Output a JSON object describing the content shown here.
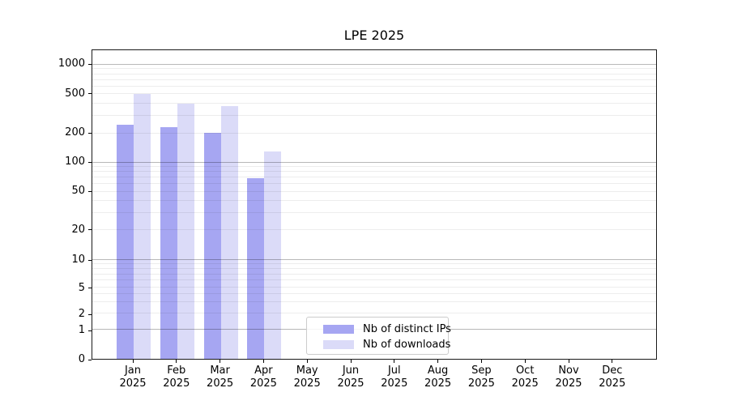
{
  "chart_data": {
    "type": "bar",
    "title": "LPE 2025",
    "scale": "symlog",
    "grid": "horizontal major and minor gridlines",
    "legend_position": "lower center inside plot",
    "categories": [
      "Jan",
      "Feb",
      "Mar",
      "Apr",
      "May",
      "Jun",
      "Jul",
      "Aug",
      "Sep",
      "Oct",
      "Nov",
      "Dec"
    ],
    "category_year": "2025",
    "yticks": [
      0,
      1,
      2,
      5,
      10,
      20,
      50,
      100,
      200,
      500,
      1000
    ],
    "ylim": [
      0,
      1400
    ],
    "xlabel": "",
    "ylabel": "",
    "series": [
      {
        "name": "Nb of distinct IPs",
        "color": "#a6a6f2",
        "values": [
          240,
          225,
          198,
          67,
          null,
          null,
          null,
          null,
          null,
          null,
          null,
          null
        ]
      },
      {
        "name": "Nb of downloads",
        "color": "#dbdbf8",
        "values": [
          485,
          390,
          371,
          127,
          null,
          null,
          null,
          null,
          null,
          null,
          null,
          null
        ]
      }
    ]
  }
}
